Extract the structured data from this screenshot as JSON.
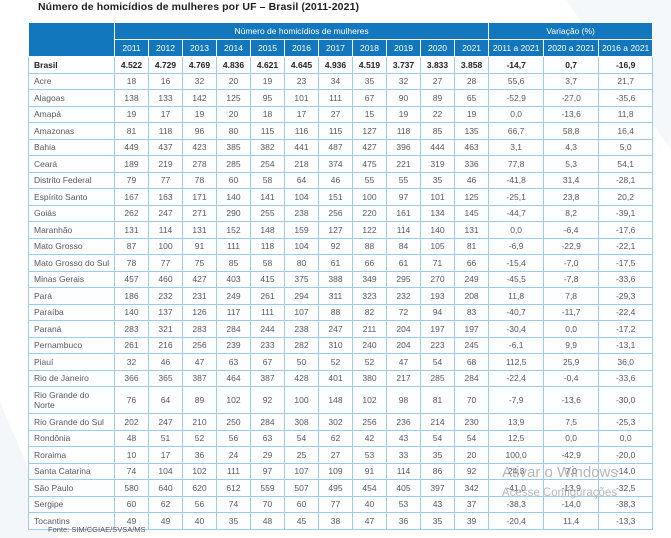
{
  "title": "Número de homicídios de mulheres por UF – Brasil (2011-2021)",
  "colors": {
    "header_blue": "#1377bd",
    "cell_border_blue": "#9ecbe9",
    "body_text_gray": "#58595b",
    "bold_text": "#232224"
  },
  "table": {
    "group_headers": {
      "main": "Número de homicídios de mulheres",
      "variation": "Variação (%)"
    },
    "year_columns": [
      "2011",
      "2012",
      "2013",
      "2014",
      "2015",
      "2016",
      "2017",
      "2018",
      "2019",
      "2020",
      "2021"
    ],
    "variation_columns": [
      "2011 a 2021",
      "2020 a 2021",
      "2016 a 2021"
    ],
    "rows": [
      {
        "uf": "Brasil",
        "bold": true,
        "values": [
          "4.522",
          "4.729",
          "4.769",
          "4.836",
          "4.621",
          "4.645",
          "4.936",
          "4.519",
          "3.737",
          "3.833",
          "3.858"
        ],
        "variations": [
          "-14,7",
          "0,7",
          "-16,9"
        ]
      },
      {
        "uf": "Acre",
        "bold": false,
        "values": [
          "18",
          "16",
          "32",
          "20",
          "19",
          "23",
          "34",
          "35",
          "32",
          "27",
          "28"
        ],
        "variations": [
          "55,6",
          "3,7",
          "21,7"
        ]
      },
      {
        "uf": "Alagoas",
        "bold": false,
        "values": [
          "138",
          "133",
          "142",
          "125",
          "95",
          "101",
          "111",
          "67",
          "90",
          "89",
          "65"
        ],
        "variations": [
          "-52,9",
          "-27,0",
          "-35,6"
        ]
      },
      {
        "uf": "Amapá",
        "bold": false,
        "values": [
          "19",
          "17",
          "19",
          "20",
          "18",
          "17",
          "27",
          "15",
          "19",
          "22",
          "19"
        ],
        "variations": [
          "0,0",
          "-13,6",
          "11,8"
        ]
      },
      {
        "uf": "Amazonas",
        "bold": false,
        "values": [
          "81",
          "118",
          "96",
          "80",
          "115",
          "116",
          "115",
          "127",
          "118",
          "85",
          "135"
        ],
        "variations": [
          "66,7",
          "58,8",
          "16,4"
        ]
      },
      {
        "uf": "Bahia",
        "bold": false,
        "values": [
          "449",
          "437",
          "423",
          "385",
          "382",
          "441",
          "487",
          "427",
          "396",
          "444",
          "463"
        ],
        "variations": [
          "3,1",
          "4,3",
          "5,0"
        ]
      },
      {
        "uf": "Ceará",
        "bold": false,
        "values": [
          "189",
          "219",
          "278",
          "285",
          "254",
          "218",
          "374",
          "475",
          "221",
          "319",
          "336"
        ],
        "variations": [
          "77,8",
          "5,3",
          "54,1"
        ]
      },
      {
        "uf": "Distrito Federal",
        "bold": false,
        "values": [
          "79",
          "77",
          "78",
          "60",
          "58",
          "64",
          "46",
          "55",
          "55",
          "35",
          "46"
        ],
        "variations": [
          "-41,8",
          "31,4",
          "-28,1"
        ]
      },
      {
        "uf": "Espírito Santo",
        "bold": false,
        "values": [
          "167",
          "163",
          "171",
          "140",
          "141",
          "104",
          "151",
          "100",
          "97",
          "101",
          "125"
        ],
        "variations": [
          "-25,1",
          "23,8",
          "20,2"
        ]
      },
      {
        "uf": "Goiás",
        "bold": false,
        "values": [
          "262",
          "247",
          "271",
          "290",
          "255",
          "238",
          "256",
          "220",
          "161",
          "134",
          "145"
        ],
        "variations": [
          "-44,7",
          "8,2",
          "-39,1"
        ]
      },
      {
        "uf": "Maranhão",
        "bold": false,
        "values": [
          "131",
          "114",
          "131",
          "152",
          "148",
          "159",
          "127",
          "122",
          "114",
          "140",
          "131"
        ],
        "variations": [
          "0,0",
          "-6,4",
          "-17,6"
        ]
      },
      {
        "uf": "Mato Grosso",
        "bold": false,
        "values": [
          "87",
          "100",
          "91",
          "111",
          "118",
          "104",
          "92",
          "88",
          "84",
          "105",
          "81"
        ],
        "variations": [
          "-6,9",
          "-22,9",
          "-22,1"
        ]
      },
      {
        "uf": "Mato Grosso do Sul",
        "bold": false,
        "values": [
          "78",
          "77",
          "75",
          "85",
          "58",
          "80",
          "61",
          "66",
          "61",
          "71",
          "66"
        ],
        "variations": [
          "-15,4",
          "-7,0",
          "-17,5"
        ]
      },
      {
        "uf": "Minas Gerais",
        "bold": false,
        "values": [
          "457",
          "460",
          "427",
          "403",
          "415",
          "375",
          "388",
          "349",
          "295",
          "270",
          "249"
        ],
        "variations": [
          "-45,5",
          "-7,8",
          "-33,6"
        ]
      },
      {
        "uf": "Pará",
        "bold": false,
        "values": [
          "186",
          "232",
          "231",
          "249",
          "261",
          "294",
          "311",
          "323",
          "232",
          "193",
          "208"
        ],
        "variations": [
          "11,8",
          "7,8",
          "-29,3"
        ]
      },
      {
        "uf": "Paraíba",
        "bold": false,
        "values": [
          "140",
          "137",
          "126",
          "117",
          "111",
          "107",
          "88",
          "82",
          "72",
          "94",
          "83"
        ],
        "variations": [
          "-40,7",
          "-11,7",
          "-22,4"
        ]
      },
      {
        "uf": "Paraná",
        "bold": false,
        "values": [
          "283",
          "321",
          "283",
          "284",
          "244",
          "238",
          "247",
          "211",
          "204",
          "197",
          "197"
        ],
        "variations": [
          "-30,4",
          "0,0",
          "-17,2"
        ]
      },
      {
        "uf": "Pernambuco",
        "bold": false,
        "values": [
          "261",
          "216",
          "256",
          "239",
          "233",
          "282",
          "310",
          "240",
          "204",
          "223",
          "245"
        ],
        "variations": [
          "-6,1",
          "9,9",
          "-13,1"
        ]
      },
      {
        "uf": "Piauí",
        "bold": false,
        "values": [
          "32",
          "46",
          "47",
          "63",
          "67",
          "50",
          "52",
          "52",
          "47",
          "54",
          "68"
        ],
        "variations": [
          "112,5",
          "25,9",
          "36,0"
        ]
      },
      {
        "uf": "Rio de Janeiro",
        "bold": false,
        "values": [
          "366",
          "365",
          "387",
          "464",
          "387",
          "428",
          "401",
          "380",
          "217",
          "285",
          "284"
        ],
        "variations": [
          "-22,4",
          "-0,4",
          "-33,6"
        ]
      },
      {
        "uf": "Rio Grande do Norte",
        "bold": false,
        "values": [
          "76",
          "64",
          "89",
          "102",
          "92",
          "100",
          "148",
          "102",
          "98",
          "81",
          "70"
        ],
        "variations": [
          "-7,9",
          "-13,6",
          "-30,0"
        ]
      },
      {
        "uf": "Rio Grande do Sul",
        "bold": false,
        "values": [
          "202",
          "247",
          "210",
          "250",
          "284",
          "308",
          "302",
          "256",
          "236",
          "214",
          "230"
        ],
        "variations": [
          "13,9",
          "7,5",
          "-25,3"
        ]
      },
      {
        "uf": "Rondônia",
        "bold": false,
        "values": [
          "48",
          "51",
          "52",
          "56",
          "63",
          "54",
          "62",
          "42",
          "43",
          "54",
          "54"
        ],
        "variations": [
          "12,5",
          "0,0",
          "0,0"
        ]
      },
      {
        "uf": "Roraima",
        "bold": false,
        "values": [
          "10",
          "17",
          "36",
          "24",
          "29",
          "25",
          "27",
          "53",
          "33",
          "35",
          "20"
        ],
        "variations": [
          "100,0",
          "-42,9",
          "-20,0"
        ]
      },
      {
        "uf": "Santa Catarina",
        "bold": false,
        "values": [
          "74",
          "104",
          "102",
          "111",
          "97",
          "107",
          "109",
          "91",
          "114",
          "86",
          "92"
        ],
        "variations": [
          "24,3",
          "7,0",
          "-14,0"
        ]
      },
      {
        "uf": "São Paulo",
        "bold": false,
        "values": [
          "580",
          "640",
          "620",
          "612",
          "559",
          "507",
          "495",
          "454",
          "405",
          "397",
          "342"
        ],
        "variations": [
          "-41,0",
          "-13,9",
          "-32,5"
        ]
      },
      {
        "uf": "Sergipe",
        "bold": false,
        "values": [
          "60",
          "62",
          "56",
          "74",
          "70",
          "60",
          "77",
          "40",
          "53",
          "43",
          "37"
        ],
        "variations": [
          "-38,3",
          "-14,0",
          "-38,3"
        ]
      },
      {
        "uf": "Tocantins",
        "bold": false,
        "values": [
          "49",
          "49",
          "40",
          "35",
          "48",
          "45",
          "38",
          "47",
          "36",
          "35",
          "39"
        ],
        "variations": [
          "-20,4",
          "11,4",
          "-13,3"
        ]
      }
    ]
  },
  "footer": {
    "source": "Fonte: SIM/CGIAE/SVSA/MS"
  },
  "watermark": {
    "line1": "Ativar o Windows",
    "line2": "Acesse Configurações"
  }
}
